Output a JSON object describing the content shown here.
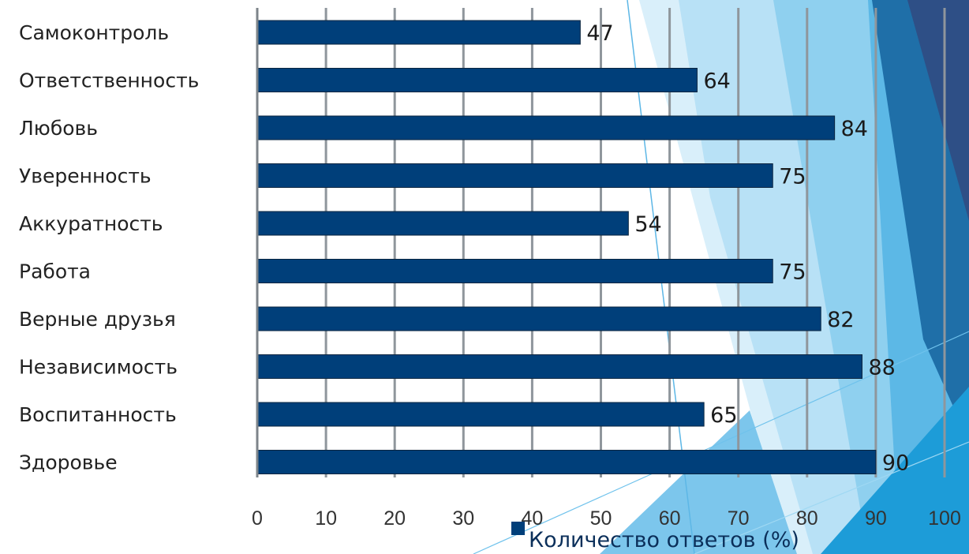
{
  "chart_data": {
    "type": "bar",
    "orientation": "horizontal",
    "categories": [
      "Самоконтроль",
      "Ответственность",
      "Любовь",
      "Уверенность",
      "Аккуратность",
      "Работа",
      "Верные друзья",
      "Независимость",
      "Воспитанность",
      "Здоровье"
    ],
    "series": [
      {
        "name": "Количество ответов (%)",
        "values": [
          47,
          64,
          84,
          75,
          54,
          75,
          82,
          88,
          65,
          90
        ],
        "color": "#003f7a"
      }
    ],
    "xlim": [
      0,
      100
    ],
    "x_ticks": [
      "0",
      "10",
      "20",
      "30",
      "40",
      "50",
      "60",
      "70",
      "80",
      "90",
      "100"
    ],
    "grid": true,
    "legend_position": "bottom",
    "data_labels": true
  },
  "theme": {
    "bar_color": "#003f7a",
    "grid_color": "#8f969c",
    "background_accent": "#1f9ad8"
  }
}
